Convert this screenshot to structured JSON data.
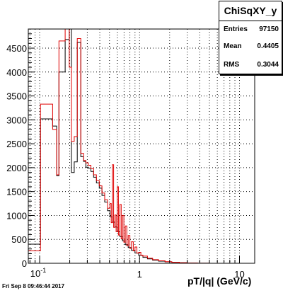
{
  "stats": {
    "title": "ChiSqXY_y",
    "entries_label": "Entries",
    "entries_value": "97150",
    "mean_label": "Mean",
    "mean_value": "0.4405",
    "rms_label": "RMS",
    "rms_value": "0.3044"
  },
  "timestamp": "Fri Sep  8 09:46:44 2017",
  "chart_data": {
    "type": "bar",
    "title": "",
    "xlabel": "pT/|q| (GeV/c)",
    "ylabel": "",
    "x_scale": "log",
    "xlim": [
      0.077,
      14.2
    ],
    "ylim": [
      0,
      4900
    ],
    "grid": true,
    "x_ticks": [
      {
        "value": 0.1,
        "label": "10^-1"
      },
      {
        "value": 1,
        "label": "1"
      },
      {
        "value": 10,
        "label": "10"
      }
    ],
    "y_ticks": [
      0,
      500,
      1000,
      1500,
      2000,
      2500,
      3000,
      3500,
      4000,
      4500
    ],
    "series": [
      {
        "color": "#000000",
        "points": [
          [
            0.077,
            400
          ],
          [
            0.102,
            3020
          ],
          [
            0.135,
            2870
          ],
          [
            0.148,
            1830
          ],
          [
            0.156,
            4000
          ],
          [
            0.18,
            4680
          ],
          [
            0.198,
            4900
          ],
          [
            0.208,
            1900
          ],
          [
            0.222,
            2120
          ],
          [
            0.238,
            4620
          ],
          [
            0.258,
            2230
          ],
          [
            0.275,
            2130
          ],
          [
            0.29,
            2010
          ],
          [
            0.307,
            1990
          ],
          [
            0.326,
            1920
          ],
          [
            0.347,
            1800
          ],
          [
            0.37,
            1680
          ],
          [
            0.395,
            1570
          ],
          [
            0.42,
            1420
          ],
          [
            0.448,
            1280
          ],
          [
            0.478,
            1100
          ],
          [
            0.505,
            970
          ],
          [
            0.535,
            860
          ],
          [
            0.566,
            760
          ],
          [
            0.598,
            660
          ],
          [
            0.635,
            560
          ],
          [
            0.675,
            470
          ],
          [
            0.72,
            390
          ],
          [
            0.77,
            330
          ],
          [
            0.83,
            270
          ],
          [
            0.9,
            215
          ],
          [
            0.98,
            165
          ],
          [
            1.08,
            125
          ],
          [
            1.2,
            92
          ],
          [
            1.35,
            65
          ],
          [
            1.55,
            45
          ],
          [
            1.8,
            30
          ],
          [
            2.1,
            18
          ],
          [
            2.5,
            10
          ],
          [
            3.0,
            5
          ],
          [
            3.8,
            2
          ],
          [
            5.0,
            0
          ],
          [
            14.2,
            0
          ]
        ]
      },
      {
        "color": "#e00000",
        "points": [
          [
            0.077,
            260
          ],
          [
            0.102,
            3330
          ],
          [
            0.135,
            2800
          ],
          [
            0.148,
            1850
          ],
          [
            0.156,
            4650
          ],
          [
            0.18,
            4900
          ],
          [
            0.198,
            4100
          ],
          [
            0.208,
            2550
          ],
          [
            0.222,
            2650
          ],
          [
            0.238,
            4700
          ],
          [
            0.258,
            2300
          ],
          [
            0.275,
            2150
          ],
          [
            0.29,
            2100
          ],
          [
            0.307,
            2050
          ],
          [
            0.326,
            1980
          ],
          [
            0.347,
            1850
          ],
          [
            0.37,
            1730
          ],
          [
            0.395,
            1620
          ],
          [
            0.42,
            1470
          ],
          [
            0.448,
            1330
          ],
          [
            0.478,
            1150
          ],
          [
            0.505,
            1250
          ],
          [
            0.52,
            850
          ],
          [
            0.535,
            2060
          ],
          [
            0.55,
            750
          ],
          [
            0.566,
            1010
          ],
          [
            0.582,
            660
          ],
          [
            0.598,
            1600
          ],
          [
            0.615,
            590
          ],
          [
            0.635,
            1230
          ],
          [
            0.655,
            510
          ],
          [
            0.675,
            1000
          ],
          [
            0.697,
            440
          ],
          [
            0.72,
            780
          ],
          [
            0.745,
            370
          ],
          [
            0.77,
            580
          ],
          [
            0.8,
            310
          ],
          [
            0.83,
            450
          ],
          [
            0.865,
            260
          ],
          [
            0.9,
            340
          ],
          [
            0.94,
            210
          ],
          [
            0.98,
            230
          ],
          [
            1.03,
            170
          ],
          [
            1.08,
            150
          ],
          [
            1.2,
            105
          ],
          [
            1.35,
            75
          ],
          [
            1.55,
            52
          ],
          [
            1.8,
            34
          ],
          [
            2.1,
            22
          ],
          [
            2.5,
            12
          ],
          [
            3.0,
            6
          ],
          [
            3.8,
            2
          ],
          [
            5.0,
            0
          ],
          [
            14.2,
            0
          ]
        ]
      }
    ]
  }
}
